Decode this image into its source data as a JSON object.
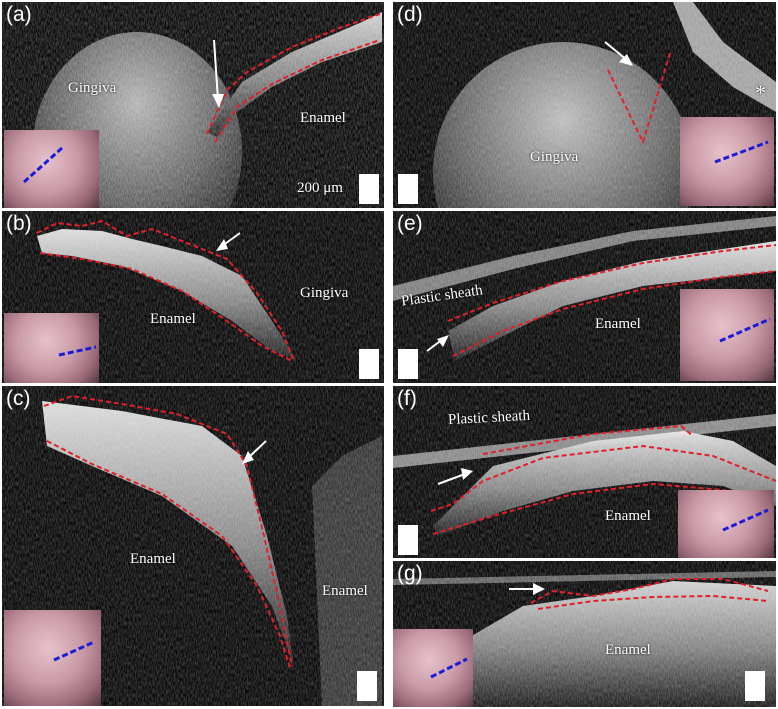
{
  "figure": {
    "panels": [
      {
        "id": "a",
        "label": "(a)",
        "texts": [
          "Gingiva",
          "Enamel",
          "200 μm"
        ]
      },
      {
        "id": "b",
        "label": "(b)",
        "texts": [
          "Enamel",
          "Gingiva"
        ]
      },
      {
        "id": "c",
        "label": "(c)",
        "texts": [
          "Enamel",
          "Enamel"
        ]
      },
      {
        "id": "d",
        "label": "(d)",
        "texts": [
          "Gingiva",
          "*"
        ]
      },
      {
        "id": "e",
        "label": "(e)",
        "texts": [
          "Plastic sheath",
          "Enamel"
        ]
      },
      {
        "id": "f",
        "label": "(f)",
        "texts": [
          "Plastic sheath",
          "Enamel"
        ]
      },
      {
        "id": "g",
        "label": "(g)",
        "texts": [
          "Enamel"
        ]
      }
    ],
    "colors": {
      "boundary_dash": "#e0202a",
      "inset_scan_line": "#1c1cd8",
      "arrow": "#ffffff",
      "tissue_bright": "#d9d9d9",
      "background": "#050505"
    }
  }
}
